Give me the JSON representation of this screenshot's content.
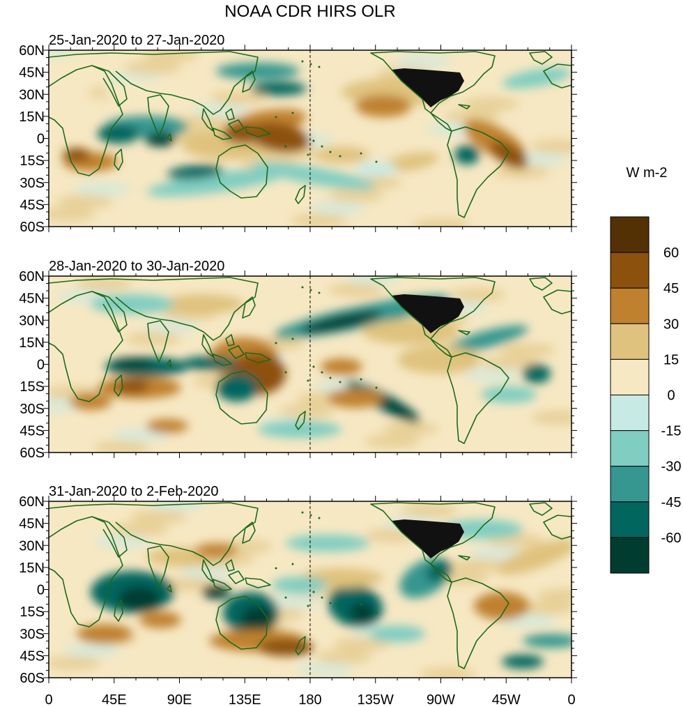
{
  "title": "NOAA CDR HIRS OLR",
  "units": "W m-2",
  "colors": {
    "land_outline": "#1a6b1a",
    "us_states": "#000000",
    "levels": [
      "#003c30",
      "#01665e",
      "#35978f",
      "#80cdc1",
      "#c7eae5",
      "#f6e8c3",
      "#dfc27d",
      "#bf812d",
      "#8c510a",
      "#543005"
    ]
  },
  "colorbar": {
    "labels": [
      "60",
      "45",
      "30",
      "15",
      "0",
      "-15",
      "-30",
      "-45",
      "-60"
    ]
  },
  "lat_ticks": [
    "60N",
    "45N",
    "30N",
    "15N",
    "0",
    "15S",
    "30S",
    "45S",
    "60S"
  ],
  "lon_ticks": [
    "0",
    "45E",
    "90E",
    "135E",
    "180",
    "135W",
    "90W",
    "45W",
    "0"
  ],
  "panels": [
    {
      "period": "25-Jan-2020 to 27-Jan-2020"
    },
    {
      "period": "28-Jan-2020 to 30-Jan-2020"
    },
    {
      "period": "31-Jan-2020 to 2-Feb-2020"
    }
  ]
}
